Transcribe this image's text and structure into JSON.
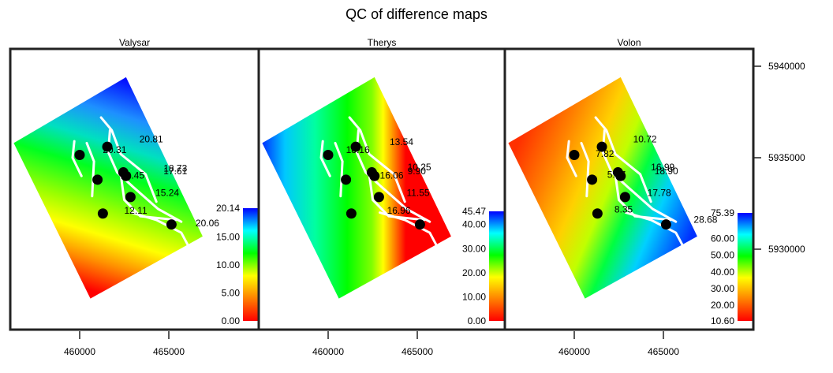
{
  "chart_data": {
    "type": "heatmap",
    "title": "QC of difference maps",
    "xlabel": "",
    "ylabel": "",
    "x_ticks": [
      460000,
      465000
    ],
    "x_tick_labels": [
      "460000",
      "465000"
    ],
    "y_ticks": [
      5930000,
      5935000,
      5940000
    ],
    "y_tick_labels": [
      "5930000",
      "5935000",
      "5940000"
    ],
    "xlim": [
      456300,
      470100
    ],
    "ylim": [
      5925000,
      5941500
    ],
    "grid": false,
    "colormap": [
      "#ff0000",
      "#ff8000",
      "#ffff00",
      "#00ff00",
      "#00ffff",
      "#0000ff"
    ],
    "wells": [
      {
        "x": 460000,
        "y": 5935150
      },
      {
        "x": 461550,
        "y": 5935600
      },
      {
        "x": 461000,
        "y": 5933800
      },
      {
        "x": 462450,
        "y": 5934200
      },
      {
        "x": 462600,
        "y": 5934000
      },
      {
        "x": 462850,
        "y": 5932850
      },
      {
        "x": 461300,
        "y": 5931950
      },
      {
        "x": 465150,
        "y": 5931350
      }
    ],
    "panels": [
      {
        "name": "Valysar",
        "colorbar": {
          "min": 0.0,
          "max": 20.14,
          "tick_labels": [
            "20.14",
            "15.00",
            "10.00",
            "5.00",
            "0.00"
          ],
          "tick_values": [
            20.14,
            15,
            10,
            5,
            0
          ]
        },
        "gradient": "valysar",
        "labels": [
          {
            "text": "20.31",
            "x": 461300,
            "y": 5935250
          },
          {
            "text": "20.81",
            "x": 463350,
            "y": 5935850
          },
          {
            "text": "18.73",
            "x": 464700,
            "y": 5934250
          },
          {
            "text": "17.61",
            "x": 464700,
            "y": 5934100
          },
          {
            "text": "20.45",
            "x": 462300,
            "y": 5933850
          },
          {
            "text": "15.24",
            "x": 464250,
            "y": 5932900
          },
          {
            "text": "12.11",
            "x": 462500,
            "y": 5931950
          },
          {
            "text": "20.06",
            "x": 466500,
            "y": 5931250
          }
        ]
      },
      {
        "name": "Therys",
        "colorbar": {
          "min": 0.0,
          "max": 45.47,
          "tick_labels": [
            "45.47",
            "40.00",
            "30.00",
            "20.00",
            "10.00",
            "0.00"
          ],
          "tick_values": [
            45.47,
            40,
            30,
            20,
            10,
            0
          ]
        },
        "gradient": "therys",
        "labels": [
          {
            "text": "18.16",
            "x": 461000,
            "y": 5935250
          },
          {
            "text": "13.54",
            "x": 463450,
            "y": 5935700
          },
          {
            "text": "10.25",
            "x": 464450,
            "y": 5934300
          },
          {
            "text": "9.90",
            "x": 464450,
            "y": 5934100
          },
          {
            "text": "16.06",
            "x": 462900,
            "y": 5933850
          },
          {
            "text": "11.55",
            "x": 464400,
            "y": 5932900
          },
          {
            "text": "16.96",
            "x": 463300,
            "y": 5931950
          }
        ]
      },
      {
        "name": "Volon",
        "colorbar": {
          "min": 10.6,
          "max": 75.39,
          "tick_labels": [
            "75.39",
            "60.00",
            "50.00",
            "40.00",
            "30.00",
            "20.00",
            "10.60"
          ],
          "tick_values": [
            75.39,
            60,
            50,
            40,
            30,
            20,
            10.6
          ]
        },
        "gradient": "volon",
        "labels": [
          {
            "text": "7.82",
            "x": 461200,
            "y": 5935050
          },
          {
            "text": "10.72",
            "x": 463300,
            "y": 5935850
          },
          {
            "text": "16.99",
            "x": 464300,
            "y": 5934300
          },
          {
            "text": "18.90",
            "x": 464500,
            "y": 5934100
          },
          {
            "text": "5.77",
            "x": 461850,
            "y": 5933900
          },
          {
            "text": "17.78",
            "x": 464100,
            "y": 5932900
          },
          {
            "text": "8.35",
            "x": 462250,
            "y": 5932000
          },
          {
            "text": "28.68",
            "x": 466700,
            "y": 5931450
          }
        ]
      }
    ]
  }
}
